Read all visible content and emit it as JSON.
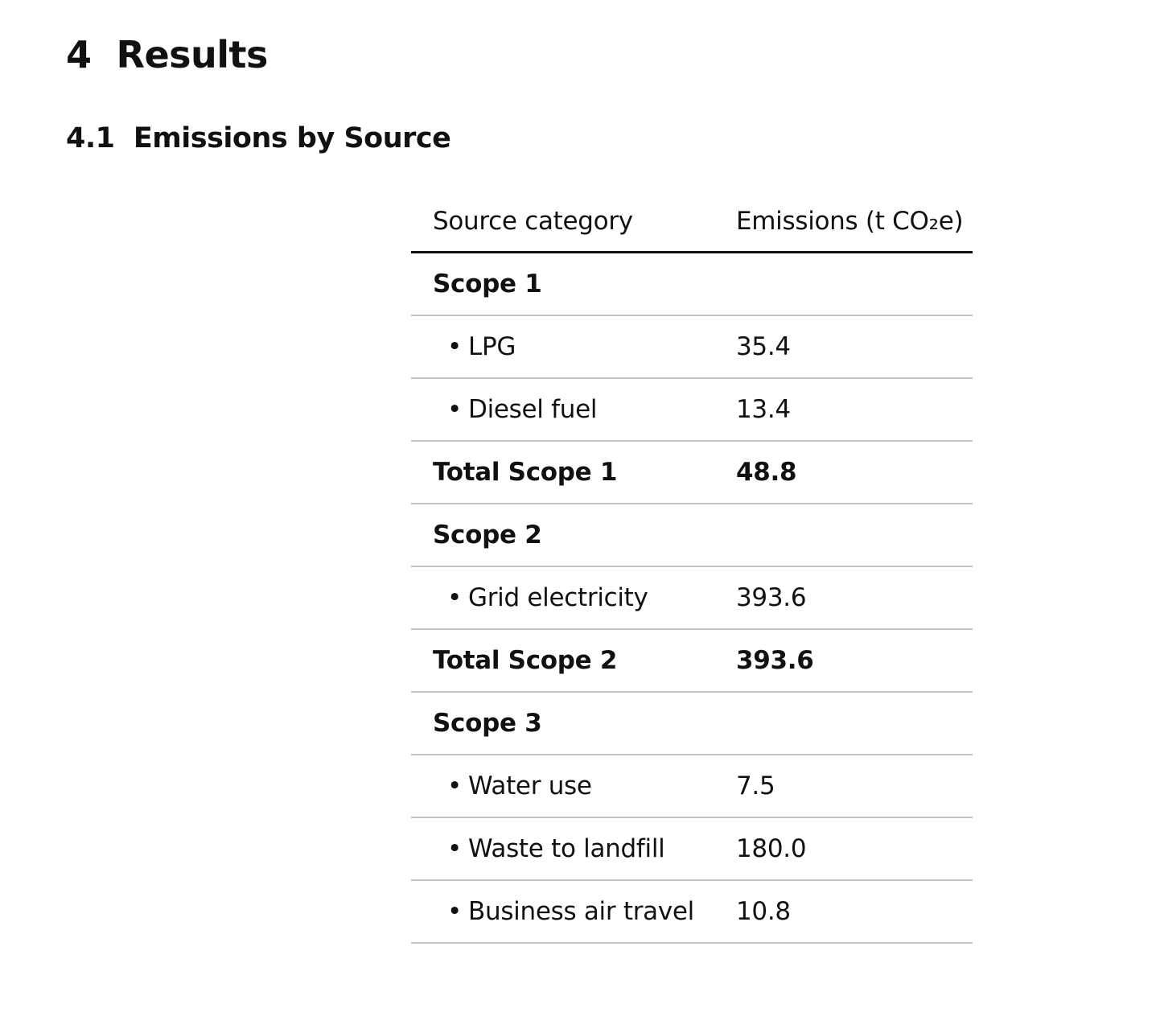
{
  "section": {
    "heading": "4  Results",
    "subheading": "4.1  Emissions by Source"
  },
  "table": {
    "headers": [
      "Source category",
      "Emissions (t CO₂e)"
    ],
    "rows": [
      {
        "type": "group",
        "label": "Scope 1",
        "value": ""
      },
      {
        "type": "item",
        "bullet": "•",
        "label": "LPG",
        "value": "35.4"
      },
      {
        "type": "item",
        "bullet": "•",
        "label": "Diesel fuel",
        "value": "13.4"
      },
      {
        "type": "total",
        "label": "Total Scope 1",
        "value": "48.8"
      },
      {
        "type": "group",
        "label": "Scope 2",
        "value": ""
      },
      {
        "type": "item",
        "bullet": "•",
        "label": "Grid electricity",
        "value": "393.6"
      },
      {
        "type": "total",
        "label": "Total Scope 2",
        "value": "393.6"
      },
      {
        "type": "group",
        "label": "Scope 3",
        "value": ""
      },
      {
        "type": "item",
        "bullet": "•",
        "label": "Water use",
        "value": "7.5"
      },
      {
        "type": "item",
        "bullet": "•",
        "label": "Waste to landfill",
        "value": "180.0"
      },
      {
        "type": "item",
        "bullet": "•",
        "label": "Business air travel",
        "value": "10.8"
      }
    ]
  }
}
